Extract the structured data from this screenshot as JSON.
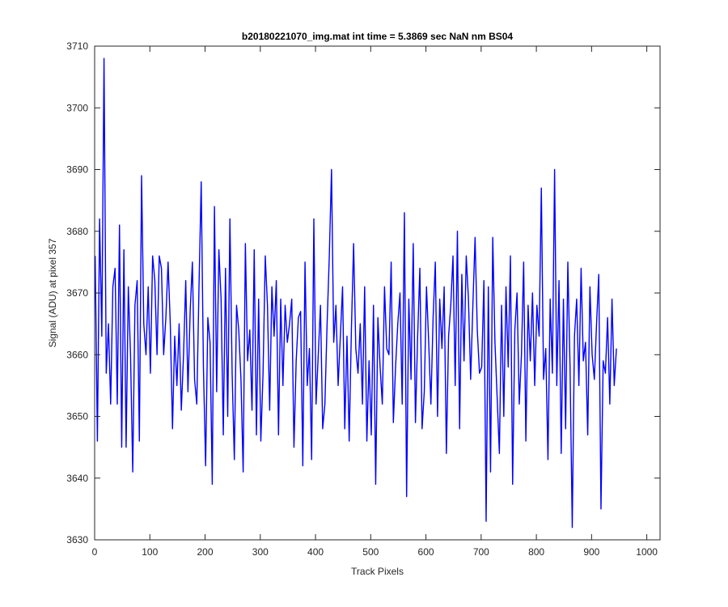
{
  "chart_data": {
    "type": "line",
    "title": "b20180221070_img.mat int time = 5.3869 sec  NaN nm BS04",
    "xlabel": "Track Pixels",
    "ylabel": "Signal (ADU) at pixel 357",
    "xlim": [
      0,
      1024
    ],
    "ylim": [
      3630,
      3710
    ],
    "xticks": [
      0,
      100,
      200,
      300,
      400,
      500,
      600,
      700,
      800,
      900,
      1000
    ],
    "yticks": [
      3630,
      3640,
      3650,
      3660,
      3670,
      3680,
      3690,
      3700,
      3710
    ],
    "grid": false,
    "legend": "none",
    "series": [
      {
        "color": "#0000ff",
        "x_start": 1,
        "x_step": 4,
        "values": [
          3676,
          3646,
          3682,
          3663,
          3708,
          3657,
          3665,
          3652,
          3671,
          3674,
          3652,
          3681,
          3645,
          3677,
          3645,
          3671,
          3660,
          3641,
          3668,
          3672,
          3646,
          3689,
          3665,
          3660,
          3671,
          3657,
          3676,
          3672,
          3660,
          3676,
          3674,
          3660,
          3666,
          3675,
          3665,
          3648,
          3663,
          3655,
          3665,
          3651,
          3660,
          3672,
          3654,
          3667,
          3675,
          3656,
          3652,
          3671,
          3688,
          3658,
          3642,
          3666,
          3662,
          3639,
          3684,
          3654,
          3677,
          3669,
          3647,
          3674,
          3650,
          3682,
          3657,
          3643,
          3668,
          3664,
          3656,
          3641,
          3678,
          3659,
          3664,
          3651,
          3677,
          3647,
          3669,
          3646,
          3657,
          3676,
          3668,
          3651,
          3671,
          3663,
          3672,
          3647,
          3669,
          3655,
          3668,
          3662,
          3665,
          3669,
          3645,
          3659,
          3666,
          3667,
          3642,
          3675,
          3655,
          3661,
          3643,
          3682,
          3652,
          3660,
          3668,
          3648,
          3652,
          3665,
          3676,
          3690,
          3662,
          3668,
          3655,
          3663,
          3671,
          3648,
          3663,
          3646,
          3664,
          3678,
          3661,
          3657,
          3665,
          3652,
          3671,
          3646,
          3659,
          3647,
          3668,
          3639,
          3666,
          3658,
          3652,
          3671,
          3661,
          3660,
          3675,
          3649,
          3658,
          3665,
          3670,
          3652,
          3683,
          3637,
          3669,
          3656,
          3678,
          3649,
          3663,
          3674,
          3648,
          3654,
          3671,
          3662,
          3652,
          3666,
          3675,
          3650,
          3669,
          3661,
          3671,
          3644,
          3663,
          3668,
          3676,
          3655,
          3680,
          3648,
          3673,
          3659,
          3676,
          3669,
          3656,
          3668,
          3679,
          3664,
          3657,
          3658,
          3672,
          3633,
          3671,
          3641,
          3679,
          3662,
          3653,
          3644,
          3668,
          3650,
          3671,
          3658,
          3676,
          3639,
          3664,
          3670,
          3652,
          3660,
          3675,
          3646,
          3668,
          3659,
          3670,
          3655,
          3668,
          3663,
          3687,
          3656,
          3661,
          3643,
          3669,
          3657,
          3690,
          3655,
          3672,
          3644,
          3669,
          3648,
          3675,
          3658,
          3632,
          3663,
          3669,
          3655,
          3674,
          3659,
          3662,
          3647,
          3671,
          3660,
          3656,
          3665,
          3673,
          3635,
          3659,
          3657,
          3666,
          3652,
          3669,
          3655,
          3661
        ]
      }
    ]
  }
}
